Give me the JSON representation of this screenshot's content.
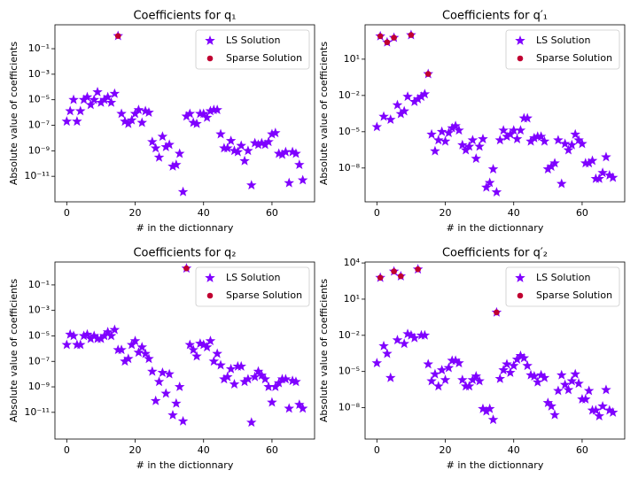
{
  "chart_data": [
    {
      "type": "scatter",
      "title": "Coefficients for q₁",
      "x_label": "# in the dictionnary",
      "y_label": "Absolute value of coefficients",
      "yscale": "log",
      "legend": "upper right",
      "x": [
        0,
        1,
        2,
        3,
        4,
        5,
        6,
        7,
        8,
        9,
        10,
        11,
        12,
        13,
        14,
        15,
        16,
        17,
        18,
        19,
        20,
        21,
        22,
        23,
        24,
        25,
        26,
        27,
        28,
        29,
        30,
        31,
        32,
        33,
        34,
        35,
        36,
        37,
        38,
        39,
        40,
        41,
        42,
        43,
        44,
        45,
        46,
        47,
        48,
        49,
        50,
        51,
        52,
        53,
        54,
        55,
        56,
        57,
        58,
        59,
        60,
        61,
        62,
        63,
        64,
        65,
        66,
        67,
        68,
        69
      ],
      "xlim": [
        -3.45,
        72.45
      ],
      "xticks": [
        0,
        20,
        40,
        60
      ],
      "ylim": [
        1e-13,
        7.5
      ],
      "yticks": [
        {
          "value": 1e-11,
          "label": "10⁻¹¹"
        },
        {
          "value": 1e-09,
          "label": "10⁻⁹"
        },
        {
          "value": 1e-07,
          "label": "10⁻⁷"
        },
        {
          "value": 1e-05,
          "label": "10⁻⁵"
        },
        {
          "value": 0.001,
          "label": "10⁻³"
        },
        {
          "value": 0.1,
          "label": "10⁻¹"
        }
      ],
      "series": [
        {
          "name": "LS Solution",
          "marker": "star",
          "color": "#7f00ff",
          "values": [
            2e-07,
            1.3e-06,
            1e-05,
            2e-07,
            1.3e-06,
            1e-05,
            1.6e-05,
            4e-06,
            1e-05,
            4e-05,
            6e-06,
            1e-05,
            1.6e-05,
            6e-06,
            3e-05,
            1,
            8e-07,
            2e-07,
            1.3e-07,
            2.5e-07,
            8e-07,
            1.6e-06,
            1.6e-07,
            1.3e-06,
            1e-06,
            5e-09,
            1.6e-09,
            3e-10,
            1.3e-08,
            2e-09,
            3e-09,
            6e-11,
            8e-11,
            6e-10,
            6e-13,
            5e-07,
            8e-07,
            1.6e-07,
            1.3e-07,
            8e-07,
            8e-07,
            4e-07,
            1.3e-06,
            1.6e-06,
            1.6e-06,
            2e-08,
            1.6e-09,
            1.6e-09,
            6e-09,
            1e-09,
            8e-10,
            2.5e-09,
            1.6e-10,
            1e-09,
            2e-12,
            4e-09,
            3e-09,
            4e-09,
            3e-09,
            5e-09,
            2e-08,
            2.5e-08,
            6e-10,
            5e-10,
            8e-10,
            3e-12,
            8e-10,
            6e-10,
            8e-11,
            5e-12
          ]
        },
        {
          "name": "Sparse Solution",
          "marker": "circle",
          "color": "#c00030",
          "values": [
            null,
            null,
            null,
            null,
            null,
            null,
            null,
            null,
            null,
            null,
            null,
            null,
            null,
            null,
            null,
            1,
            null,
            null,
            null,
            null,
            null,
            null,
            null,
            null,
            null,
            null,
            null,
            null,
            null,
            null,
            null,
            null,
            null,
            null,
            null,
            null,
            null,
            null,
            null,
            null,
            null,
            null,
            null,
            null,
            null,
            null,
            null,
            null,
            null,
            null,
            null,
            null,
            null,
            null,
            null,
            null,
            null,
            null,
            null,
            null,
            null,
            null,
            null,
            null,
            null,
            null,
            null,
            null,
            null,
            null
          ]
        }
      ]
    },
    {
      "type": "scatter",
      "title": "Coefficients for q′₁",
      "x_label": "# in the dictionnary",
      "y_label": "Absolute value of coefficients",
      "yscale": "log",
      "legend": "upper right",
      "x": [
        0,
        1,
        2,
        3,
        4,
        5,
        6,
        7,
        8,
        9,
        10,
        11,
        12,
        13,
        14,
        15,
        16,
        17,
        18,
        19,
        20,
        21,
        22,
        23,
        24,
        25,
        26,
        27,
        28,
        29,
        30,
        31,
        32,
        33,
        34,
        35,
        36,
        37,
        38,
        39,
        40,
        41,
        42,
        43,
        44,
        45,
        46,
        47,
        48,
        49,
        50,
        51,
        52,
        53,
        54,
        55,
        56,
        57,
        58,
        59,
        60,
        61,
        62,
        63,
        64,
        65,
        66,
        67,
        68,
        69
      ],
      "xlim": [
        -3.45,
        72.45
      ],
      "xticks": [
        0,
        20,
        40,
        60
      ],
      "ylim": [
        1.6e-11,
        7000
      ],
      "yticks": [
        {
          "value": 1e-08,
          "label": "10⁻⁸"
        },
        {
          "value": 1e-05,
          "label": "10⁻⁵"
        },
        {
          "value": 0.01,
          "label": "10⁻²"
        },
        {
          "value": 10,
          "label": "10¹"
        }
      ],
      "series": [
        {
          "name": "LS Solution",
          "marker": "star",
          "color": "#7f00ff",
          "values": [
            2.5e-05,
            800,
            0.00018,
            250,
            0.0001,
            600,
            0.0016,
            0.0003,
            0.0005,
            0.008,
            1000,
            0.003,
            0.005,
            0.008,
            0.013,
            0.6,
            6e-06,
            2.5e-07,
            2e-06,
            1e-05,
            1.6e-06,
            8e-06,
            2e-05,
            3e-05,
            1.3e-05,
            8e-07,
            3e-07,
            6e-07,
            2e-06,
            6e-08,
            6e-07,
            2.5e-06,
            2.5e-10,
            6e-10,
            8e-09,
            1e-10,
            2e-06,
            1.3e-05,
            4e-06,
            6e-06,
            1.3e-05,
            2.5e-06,
            1.3e-05,
            0.00013,
            0.00013,
            1.6e-06,
            3e-06,
            4e-06,
            4e-06,
            1.6e-06,
            8e-09,
            1.3e-08,
            2.5e-08,
            2e-06,
            5e-10,
            1e-06,
            3e-07,
            8e-07,
            6e-06,
            2e-06,
            1e-06,
            2.5e-08,
            2.5e-08,
            4e-08,
            1.3e-09,
            1.3e-09,
            4e-09,
            8e-08,
            2.5e-09,
            1.6e-09
          ]
        },
        {
          "name": "Sparse Solution",
          "marker": "circle",
          "color": "#c00030",
          "values": [
            null,
            800,
            null,
            250,
            null,
            600,
            null,
            null,
            null,
            null,
            1000,
            null,
            null,
            null,
            null,
            0.6,
            null,
            null,
            null,
            null,
            null,
            null,
            null,
            null,
            null,
            null,
            null,
            null,
            null,
            null,
            null,
            null,
            null,
            null,
            null,
            null,
            null,
            null,
            null,
            null,
            null,
            null,
            null,
            null,
            null,
            null,
            null,
            null,
            null,
            null,
            null,
            null,
            null,
            null,
            null,
            null,
            null,
            null,
            null,
            null,
            null,
            null,
            null,
            null,
            null,
            null,
            null,
            null,
            null,
            null
          ]
        }
      ]
    },
    {
      "type": "scatter",
      "title": "Coefficients for q₂",
      "x_label": "# in the dictionnary",
      "y_label": "Absolute value of coefficients",
      "yscale": "log",
      "legend": "upper right",
      "x": [
        0,
        1,
        2,
        3,
        4,
        5,
        6,
        7,
        8,
        9,
        10,
        11,
        12,
        13,
        14,
        15,
        16,
        17,
        18,
        19,
        20,
        21,
        22,
        23,
        24,
        25,
        26,
        27,
        28,
        29,
        30,
        31,
        32,
        33,
        34,
        35,
        36,
        37,
        38,
        39,
        40,
        41,
        42,
        43,
        44,
        45,
        46,
        47,
        48,
        49,
        50,
        51,
        52,
        53,
        54,
        55,
        56,
        57,
        58,
        59,
        60,
        61,
        62,
        63,
        64,
        65,
        66,
        67,
        68,
        69
      ],
      "xlim": [
        -3.45,
        72.45
      ],
      "xticks": [
        0,
        20,
        40,
        60
      ],
      "ylim": [
        8e-14,
        6.3
      ],
      "yticks": [
        {
          "value": 1e-11,
          "label": "10⁻¹¹"
        },
        {
          "value": 1e-09,
          "label": "10⁻⁹"
        },
        {
          "value": 1e-07,
          "label": "10⁻⁷"
        },
        {
          "value": 1e-05,
          "label": "10⁻⁵"
        },
        {
          "value": 0.001,
          "label": "10⁻³"
        },
        {
          "value": 0.1,
          "label": "10⁻¹"
        }
      ],
      "series": [
        {
          "name": "LS Solution",
          "marker": "star",
          "color": "#7f00ff",
          "values": [
            2e-06,
            1.3e-05,
            1e-05,
            2e-06,
            2e-06,
            1e-05,
            1.3e-05,
            6e-06,
            1e-05,
            6e-06,
            6e-06,
            1e-05,
            2e-05,
            1e-05,
            3e-05,
            8e-07,
            8e-07,
            1e-07,
            1.6e-07,
            2e-06,
            4e-06,
            5e-07,
            1.3e-06,
            4e-07,
            1.6e-07,
            1.6e-08,
            8e-11,
            2.5e-09,
            1.3e-08,
            3e-10,
            1e-08,
            6e-12,
            5e-11,
            1e-09,
            2e-12,
            2,
            2e-06,
            8e-07,
            2.5e-07,
            2.5e-06,
            2e-06,
            1.3e-06,
            4e-06,
            1e-07,
            4e-07,
            5e-08,
            4e-09,
            6e-09,
            2.5e-08,
            1.6e-09,
            4e-08,
            4e-08,
            2.5e-09,
            4e-09,
            1.6e-12,
            6e-09,
            1.6e-08,
            8e-09,
            4e-09,
            1e-09,
            6e-11,
            1e-09,
            2e-09,
            4e-09,
            4e-09,
            2e-11,
            3e-09,
            2.5e-09,
            4e-11,
            2e-11
          ]
        },
        {
          "name": "Sparse Solution",
          "marker": "circle",
          "color": "#c00030",
          "values": [
            null,
            null,
            null,
            null,
            null,
            null,
            null,
            null,
            null,
            null,
            null,
            null,
            null,
            null,
            null,
            null,
            null,
            null,
            null,
            null,
            null,
            null,
            null,
            null,
            null,
            null,
            null,
            null,
            null,
            null,
            null,
            null,
            null,
            null,
            null,
            2,
            null,
            null,
            null,
            null,
            null,
            null,
            null,
            null,
            null,
            null,
            null,
            null,
            null,
            null,
            null,
            null,
            null,
            null,
            null,
            null,
            null,
            null,
            null,
            null,
            null,
            null,
            null,
            null,
            null,
            null,
            null,
            null,
            null,
            null
          ]
        }
      ]
    },
    {
      "type": "scatter",
      "title": "Coefficients for q′₂",
      "x_label": "# in the dictionnary",
      "y_label": "Absolute value of coefficients",
      "yscale": "log",
      "legend": "upper right",
      "x": [
        0,
        1,
        2,
        3,
        4,
        5,
        6,
        7,
        8,
        9,
        10,
        11,
        12,
        13,
        14,
        15,
        16,
        17,
        18,
        19,
        20,
        21,
        22,
        23,
        24,
        25,
        26,
        27,
        28,
        29,
        30,
        31,
        32,
        33,
        34,
        35,
        36,
        37,
        38,
        39,
        40,
        41,
        42,
        43,
        44,
        45,
        46,
        47,
        48,
        49,
        50,
        51,
        52,
        53,
        54,
        55,
        56,
        57,
        58,
        59,
        60,
        61,
        62,
        63,
        64,
        65,
        66,
        67,
        68,
        69
      ],
      "xlim": [
        -3.45,
        72.45
      ],
      "xticks": [
        0,
        20,
        40,
        60
      ],
      "ylim": [
        2.5e-11,
        12000
      ],
      "yticks": [
        {
          "value": 1e-08,
          "label": "10⁻⁸"
        },
        {
          "value": 1e-05,
          "label": "10⁻⁵"
        },
        {
          "value": 0.01,
          "label": "10⁻²"
        },
        {
          "value": 10,
          "label": "10¹"
        },
        {
          "value": 10000,
          "label": "10⁴"
        }
      ],
      "series": [
        {
          "name": "LS Solution",
          "marker": "star",
          "color": "#7f00ff",
          "values": [
            5e-05,
            600,
            0.0013,
            0.0003,
            3e-06,
            2000,
            0.004,
            800,
            0.002,
            0.013,
            0.01,
            0.006,
            3000,
            0.01,
            0.01,
            4e-05,
            1.6e-06,
            6e-06,
            6e-07,
            1.3e-05,
            2e-06,
            2e-05,
            8e-05,
            8e-05,
            5e-05,
            2e-06,
            6e-07,
            6e-07,
            2e-06,
            4e-06,
            1.6e-06,
            8e-09,
            5e-09,
            8e-09,
            1e-09,
            0.8,
            2.5e-06,
            1.3e-05,
            4e-05,
            8e-06,
            3e-05,
            0.0001,
            0.0002,
            0.00013,
            3e-05,
            5e-06,
            4e-06,
            1.3e-06,
            5e-06,
            3e-06,
            2.5e-08,
            1.3e-08,
            2.5e-09,
            2.5e-07,
            5e-06,
            8e-07,
            3e-07,
            1.6e-06,
            6e-06,
            1e-06,
            5e-08,
            5e-08,
            2.5e-07,
            6e-09,
            6e-09,
            2e-09,
            1.3e-08,
            3e-07,
            6e-09,
            4e-09
          ]
        },
        {
          "name": "Sparse Solution",
          "marker": "circle",
          "color": "#c00030",
          "values": [
            null,
            600,
            null,
            null,
            null,
            2000,
            null,
            800,
            null,
            null,
            null,
            null,
            3000,
            null,
            null,
            null,
            null,
            null,
            null,
            null,
            null,
            null,
            null,
            null,
            null,
            null,
            null,
            null,
            null,
            null,
            null,
            null,
            null,
            null,
            null,
            0.8,
            null,
            null,
            null,
            null,
            null,
            null,
            null,
            null,
            null,
            null,
            null,
            null,
            null,
            null,
            null,
            null,
            null,
            null,
            null,
            null,
            null,
            null,
            null,
            null,
            null,
            null,
            null,
            null,
            null,
            null,
            null,
            null,
            null,
            null
          ]
        }
      ]
    }
  ]
}
